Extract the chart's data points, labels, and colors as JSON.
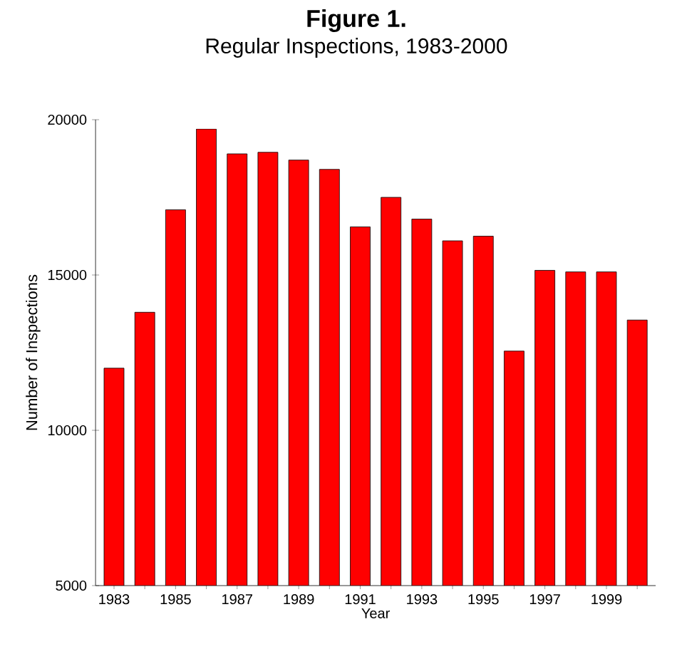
{
  "chart_data": {
    "type": "bar",
    "title": "Figure 1.",
    "subtitle": "Regular Inspections, 1983-2000",
    "xlabel": "Year",
    "ylabel": "Number of Inspections",
    "categories": [
      "1983",
      null,
      "1985",
      null,
      "1987",
      null,
      "1989",
      null,
      "1991",
      null,
      "1993",
      null,
      "1995",
      null,
      "1997",
      null,
      "1999",
      null
    ],
    "values": [
      12000,
      13800,
      17100,
      19700,
      18900,
      18950,
      18700,
      18400,
      16550,
      17500,
      16800,
      16100,
      16250,
      12550,
      15150,
      15100,
      15100,
      13550
    ],
    "color": "#ff0000",
    "ylim": [
      5000,
      20000
    ],
    "yticks": [
      5000,
      10000,
      15000,
      20000
    ]
  }
}
